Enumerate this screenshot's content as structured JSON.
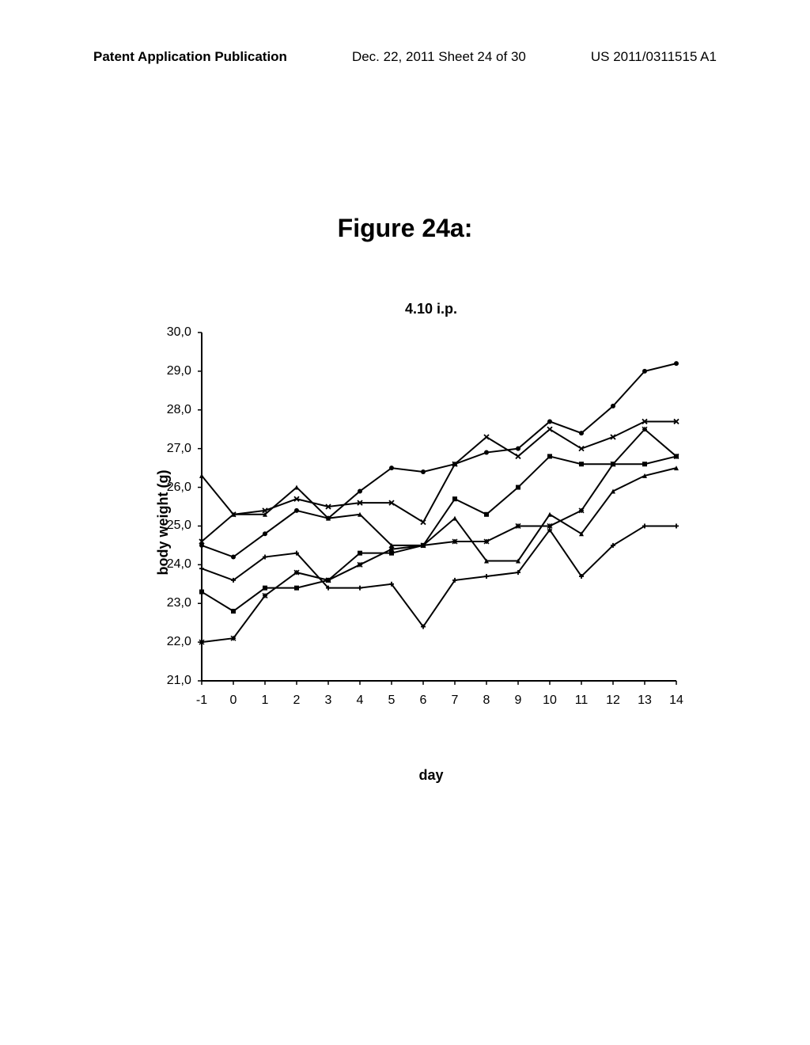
{
  "header": {
    "left": "Patent Application Publication",
    "mid": "Dec. 22, 2011  Sheet 24 of 30",
    "right": "US 2011/0311515 A1"
  },
  "figure_title": "Figure 24a:",
  "chart": {
    "type": "line",
    "title": "4.10 i.p.",
    "xlabel": "day",
    "ylabel": "body weight (g)",
    "title_fontsize": 18,
    "label_fontsize": 18,
    "tick_fontsize": 16,
    "background_color": "#ffffff",
    "line_color": "#000000",
    "line_width": 2,
    "marker_size": 6,
    "xlim": [
      -1,
      14
    ],
    "ylim": [
      21.0,
      30.0
    ],
    "xticks": [
      -1,
      0,
      1,
      2,
      3,
      4,
      5,
      6,
      7,
      8,
      9,
      10,
      11,
      12,
      13,
      14
    ],
    "yticks": [
      21.0,
      22.0,
      23.0,
      24.0,
      25.0,
      26.0,
      27.0,
      28.0,
      29.0,
      30.0
    ],
    "ytick_labels": [
      "21,0",
      "22,0",
      "23,0",
      "24,0",
      "25,0",
      "26,0",
      "27,0",
      "28,0",
      "29,0",
      "30,0"
    ],
    "series": [
      {
        "name": "circle",
        "marker": "circle",
        "color": "#000000",
        "x": [
          -1,
          0,
          1,
          2,
          3,
          4,
          5,
          6,
          7,
          8,
          9,
          10,
          11,
          12,
          13,
          14
        ],
        "y": [
          24.5,
          24.2,
          24.8,
          25.4,
          25.2,
          25.9,
          26.5,
          26.4,
          26.6,
          26.9,
          27.0,
          27.7,
          27.4,
          28.1,
          29.0,
          29.2
        ]
      },
      {
        "name": "x",
        "marker": "x",
        "color": "#000000",
        "x": [
          -1,
          0,
          1,
          2,
          3,
          4,
          5,
          6,
          7,
          8,
          9,
          10,
          11,
          12,
          13,
          14
        ],
        "y": [
          24.6,
          25.3,
          25.4,
          25.7,
          25.5,
          25.6,
          25.6,
          25.1,
          26.6,
          27.3,
          26.8,
          27.5,
          27.0,
          27.3,
          27.7,
          27.7
        ]
      },
      {
        "name": "square",
        "marker": "square",
        "color": "#000000",
        "x": [
          -1,
          0,
          1,
          2,
          3,
          4,
          5,
          6,
          7,
          8,
          9,
          10,
          11,
          12,
          13,
          14
        ],
        "y": [
          23.3,
          22.8,
          23.4,
          23.4,
          23.6,
          24.3,
          24.3,
          24.5,
          25.7,
          25.3,
          26.0,
          26.8,
          26.6,
          26.6,
          26.6,
          26.8
        ]
      },
      {
        "name": "triangle",
        "marker": "triangle",
        "color": "#000000",
        "x": [
          -1,
          0,
          1,
          2,
          3,
          4,
          5,
          6,
          7,
          8,
          9,
          10,
          11,
          12,
          13,
          14
        ],
        "y": [
          26.3,
          25.3,
          25.3,
          26.0,
          25.2,
          25.3,
          24.5,
          24.5,
          25.2,
          24.1,
          24.1,
          25.3,
          24.8,
          25.9,
          26.3,
          26.5
        ]
      },
      {
        "name": "asterisk",
        "marker": "asterisk",
        "color": "#000000",
        "x": [
          -1,
          0,
          1,
          2,
          3,
          4,
          5,
          6,
          7,
          8,
          9,
          10,
          11,
          12,
          13,
          14
        ],
        "y": [
          22.0,
          22.1,
          23.2,
          23.8,
          23.6,
          24.0,
          24.4,
          24.5,
          24.6,
          24.6,
          25.0,
          25.0,
          25.4,
          26.6,
          27.5,
          26.8
        ]
      },
      {
        "name": "plus",
        "marker": "plus",
        "color": "#000000",
        "x": [
          -1,
          0,
          1,
          2,
          3,
          4,
          5,
          6,
          7,
          8,
          9,
          10,
          11,
          12,
          13,
          14
        ],
        "y": [
          23.9,
          23.6,
          24.2,
          24.3,
          23.4,
          23.4,
          23.5,
          22.4,
          23.6,
          23.7,
          23.8,
          24.9,
          23.7,
          24.5,
          25.0,
          25.0
        ]
      }
    ]
  }
}
